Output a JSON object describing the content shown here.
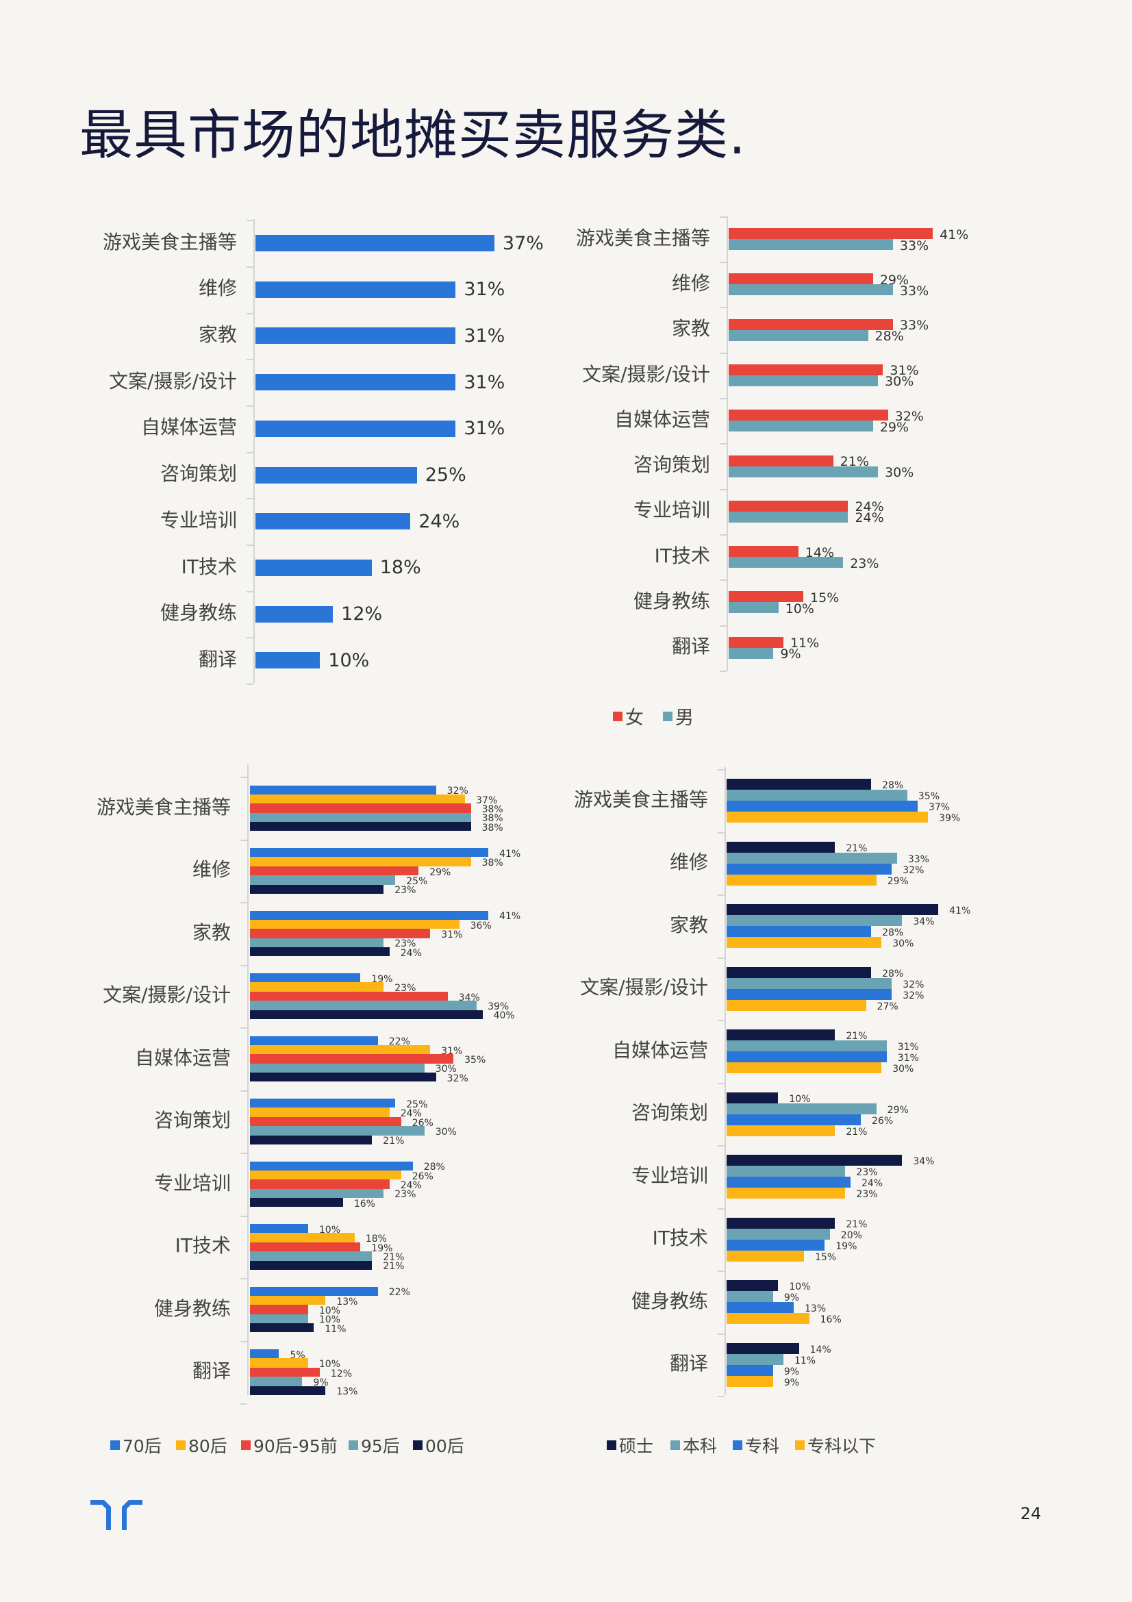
{
  "title": "最具市场的地摊买卖服务类.",
  "page_number": "24",
  "colors": {
    "blue": "#2a75d8",
    "yellow": "#fdb515",
    "red": "#e8443a",
    "teal": "#6aa3b4",
    "navy": "#111a44"
  },
  "chart_data": [
    {
      "type": "bar",
      "orientation": "horizontal",
      "categories": [
        "游戏美食主播等",
        "维修",
        "家教",
        "文案/摄影/设计",
        "自媒体运营",
        "咨询策划",
        "专业培训",
        "IT技术",
        "健身教练",
        "翻译"
      ],
      "series": [
        {
          "values": [
            "37%",
            "31%",
            "31%",
            "31%",
            "31%",
            "25%",
            "24%",
            "18%",
            "12%",
            "10%"
          ],
          "color": "#2a75d8"
        }
      ],
      "legend": "none"
    },
    {
      "type": "bar",
      "orientation": "horizontal",
      "categories": [
        "游戏美食主播等",
        "维修",
        "家教",
        "文案/摄影/设计",
        "自媒体运营",
        "咨询策划",
        "专业培训",
        "IT技术",
        "健身教练",
        "翻译"
      ],
      "series": [
        {
          "name": "女",
          "values": [
            "41%",
            "29%",
            "33%",
            "31%",
            "32%",
            "21%",
            "24%",
            "14%",
            "15%",
            "11%"
          ],
          "color": "#e8443a"
        },
        {
          "name": "男",
          "values": [
            "33%",
            "33%",
            "28%",
            "30%",
            "29%",
            "30%",
            "24%",
            "23%",
            "10%",
            "9%"
          ],
          "color": "#6aa3b4"
        }
      ],
      "legend": "bottom"
    },
    {
      "type": "bar",
      "orientation": "horizontal",
      "categories": [
        "游戏美食主播等",
        "维修",
        "家教",
        "文案/摄影/设计",
        "自媒体运营",
        "咨询策划",
        "专业培训",
        "IT技术",
        "健身教练",
        "翻译"
      ],
      "series": [
        {
          "name": "70后",
          "values": [
            "32%",
            "41%",
            "41%",
            "19%",
            "22%",
            "25%",
            "28%",
            "10%",
            "22%",
            "5%"
          ],
          "color": "#2a75d8"
        },
        {
          "name": "80后",
          "values": [
            "37%",
            "38%",
            "36%",
            "23%",
            "31%",
            "24%",
            "26%",
            "18%",
            "13%",
            "10%"
          ],
          "color": "#fdb515"
        },
        {
          "name": "90后-95前",
          "values": [
            "38%",
            "29%",
            "31%",
            "34%",
            "35%",
            "26%",
            "24%",
            "19%",
            "10%",
            "12%"
          ],
          "color": "#e8443a"
        },
        {
          "name": "95后",
          "values": [
            "38%",
            "25%",
            "23%",
            "39%",
            "30%",
            "30%",
            "23%",
            "21%",
            "10%",
            "9%"
          ],
          "color": "#6aa3b4"
        },
        {
          "name": "00后",
          "values": [
            "38%",
            "23%",
            "24%",
            "40%",
            "32%",
            "21%",
            "16%",
            "21%",
            "11%",
            "13%"
          ],
          "color": "#111a44"
        }
      ],
      "legend": "bottom"
    },
    {
      "type": "bar",
      "orientation": "horizontal",
      "categories": [
        "游戏美食主播等",
        "维修",
        "家教",
        "文案/摄影/设计",
        "自媒体运营",
        "咨询策划",
        "专业培训",
        "IT技术",
        "健身教练",
        "翻译"
      ],
      "series": [
        {
          "name": "硕士",
          "values": [
            "28%",
            "21%",
            "41%",
            "28%",
            "21%",
            "10%",
            "34%",
            "21%",
            "10%",
            "14%"
          ],
          "color": "#111a44"
        },
        {
          "name": "本科",
          "values": [
            "35%",
            "33%",
            "34%",
            "32%",
            "31%",
            "29%",
            "23%",
            "20%",
            "9%",
            "11%"
          ],
          "color": "#6aa3b4"
        },
        {
          "name": "专科",
          "values": [
            "37%",
            "32%",
            "28%",
            "32%",
            "31%",
            "26%",
            "24%",
            "19%",
            "13%",
            "9%"
          ],
          "color": "#2a75d8"
        },
        {
          "name": "专科以下",
          "values": [
            "39%",
            "29%",
            "30%",
            "27%",
            "30%",
            "21%",
            "23%",
            "15%",
            "16%",
            "9%"
          ],
          "color": "#fdb515"
        }
      ],
      "legend": "bottom"
    }
  ]
}
